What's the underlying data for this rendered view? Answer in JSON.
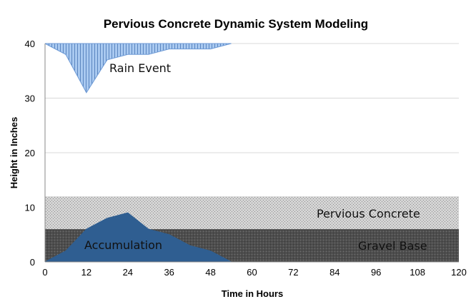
{
  "chart_data": {
    "type": "area",
    "title": "Pervious Concrete Dynamic System Modeling",
    "xlabel": "Time in Hours",
    "ylabel": "Height in Inches",
    "xlim": [
      0,
      120
    ],
    "ylim": [
      0,
      40
    ],
    "x_ticks": [
      "0",
      "12",
      "24",
      "36",
      "48",
      "60",
      "72",
      "84",
      "96",
      "108",
      "120"
    ],
    "y_ticks": [
      "0",
      "10",
      "20",
      "30",
      "40"
    ],
    "grid": "horizontal",
    "bands": [
      {
        "label": "Pervious Concrete",
        "from": 6,
        "to": 12,
        "color": "#c8c8c8",
        "pattern": "light-dots"
      },
      {
        "label": "Gravel Base",
        "from": 0,
        "to": 6,
        "color": "#555555",
        "pattern": "dark-dots"
      }
    ],
    "series": [
      {
        "label": "Rain Event",
        "kind": "hanging-from-top",
        "color": "#8fb8ea",
        "pattern": "vertical-lines",
        "x": [
          0,
          6,
          12,
          18,
          24,
          30,
          36,
          42,
          48,
          54
        ],
        "y": [
          40,
          38,
          31,
          37,
          38,
          38,
          39,
          39,
          39,
          40
        ]
      },
      {
        "label": "Accumulation",
        "kind": "area",
        "color": "#2f5e91",
        "x": [
          0,
          6,
          12,
          18,
          24,
          30,
          36,
          42,
          48,
          54
        ],
        "y": [
          0,
          2,
          6,
          8,
          9,
          6,
          5,
          3,
          2,
          0
        ]
      }
    ]
  }
}
